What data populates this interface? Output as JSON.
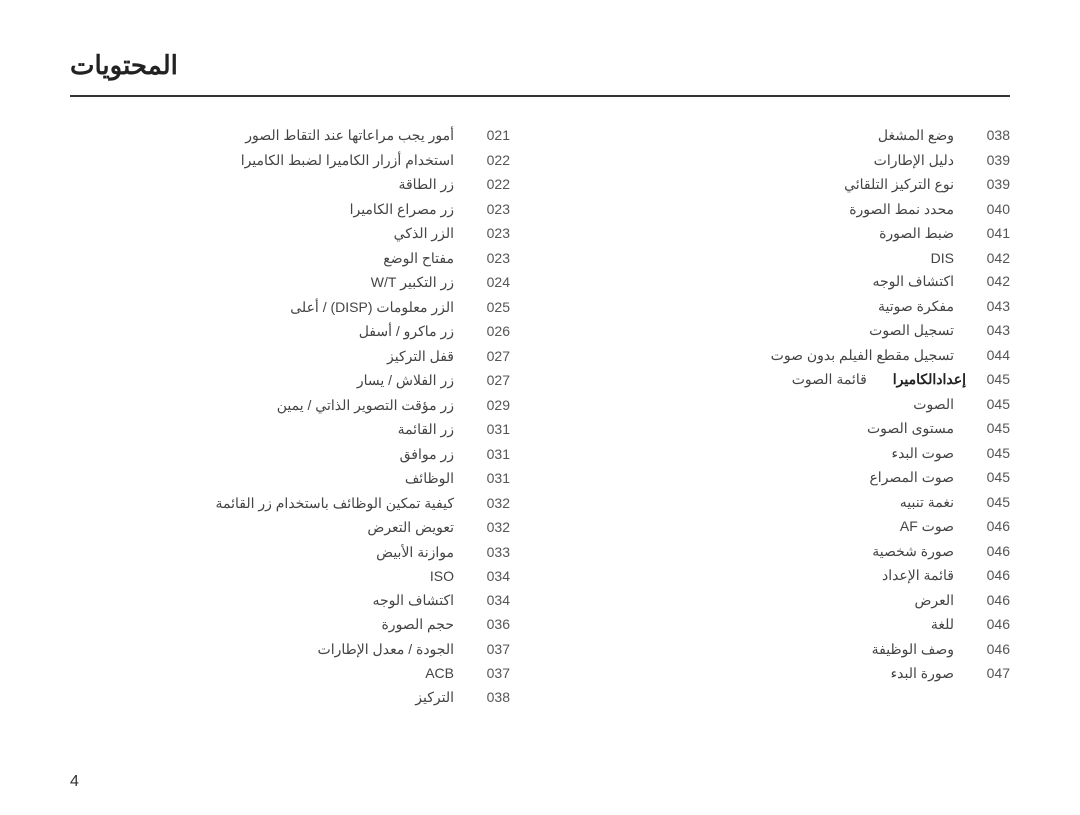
{
  "page_title": "المحتويات",
  "page_number": "4",
  "right_column": [
    {
      "pg": "021",
      "label": "أمور يجب مراعاتها عند التقاط الصور"
    },
    {
      "pg": "022",
      "label": "استخدام أزرار الكاميرا لضبط الكاميرا"
    },
    {
      "pg": "022",
      "label": "زر الطاقة"
    },
    {
      "pg": "023",
      "label": "زر مصراع الكاميرا"
    },
    {
      "pg": "023",
      "label": "الزر الذكي"
    },
    {
      "pg": "023",
      "label": "مفتاح الوضع"
    },
    {
      "pg": "024",
      "label": "زر التكبير W/T"
    },
    {
      "pg": "025",
      "label": "الزر معلومات (DISP) / أعلى"
    },
    {
      "pg": "026",
      "label": "زر ماكرو / أسفل"
    },
    {
      "pg": "027",
      "label": "قفل التركيز"
    },
    {
      "pg": "027",
      "label": "زر الفلاش / يسار"
    },
    {
      "pg": "029",
      "label": "زر مؤقت التصوير الذاتي / يمين"
    },
    {
      "pg": "031",
      "label": "زر القائمة"
    },
    {
      "pg": "031",
      "label": "زر موافق"
    },
    {
      "pg": "031",
      "label": "الوظائف"
    },
    {
      "pg": "032",
      "label": "كيفية تمكين الوظائف باستخدام زر القائمة"
    },
    {
      "pg": "032",
      "label": "تعويض التعرض"
    },
    {
      "pg": "033",
      "label": "موازنة الأبيض"
    },
    {
      "pg": "034",
      "label": "ISO"
    },
    {
      "pg": "034",
      "label": "اكتشاف الوجه"
    },
    {
      "pg": "036",
      "label": "حجم الصورة"
    },
    {
      "pg": "037",
      "label": "الجودة / معدل الإطارات"
    },
    {
      "pg": "037",
      "label": "ACB"
    },
    {
      "pg": "038",
      "label": "التركيز"
    }
  ],
  "left_column": [
    {
      "pg": "038",
      "label": "وضع المشغل"
    },
    {
      "pg": "039",
      "label": "دليل الإطارات"
    },
    {
      "pg": "039",
      "label": "نوع التركيز التلقائي"
    },
    {
      "pg": "040",
      "label": "محدد نمط الصورة"
    },
    {
      "pg": "041",
      "label": "ضبط الصورة"
    },
    {
      "pg": "042",
      "label": "DIS"
    },
    {
      "pg": "042",
      "label": "اكتشاف الوجه"
    },
    {
      "pg": "043",
      "label": "مفكرة صوتية"
    },
    {
      "pg": "043",
      "label": "تسجيل الصوت"
    },
    {
      "pg": "044",
      "label": "تسجيل مقطع الفيلم بدون صوت"
    },
    {
      "pg": "045",
      "label": "قائمة الصوت",
      "section": "إعدادالكاميرا"
    },
    {
      "pg": "045",
      "label": "الصوت"
    },
    {
      "pg": "045",
      "label": "مستوى الصوت"
    },
    {
      "pg": "045",
      "label": "صوت البدء"
    },
    {
      "pg": "045",
      "label": "صوت المصراع"
    },
    {
      "pg": "045",
      "label": "نغمة تنبيه"
    },
    {
      "pg": "046",
      "label": "صوت AF"
    },
    {
      "pg": "046",
      "label": "صورة شخصية"
    },
    {
      "pg": "046",
      "label": "قائمة الإعداد"
    },
    {
      "pg": "046",
      "label": "العرض"
    },
    {
      "pg": "046",
      "label": "للغة"
    },
    {
      "pg": "046",
      "label": "وصف الوظيفة"
    },
    {
      "pg": "047",
      "label": "صورة البدء"
    }
  ]
}
